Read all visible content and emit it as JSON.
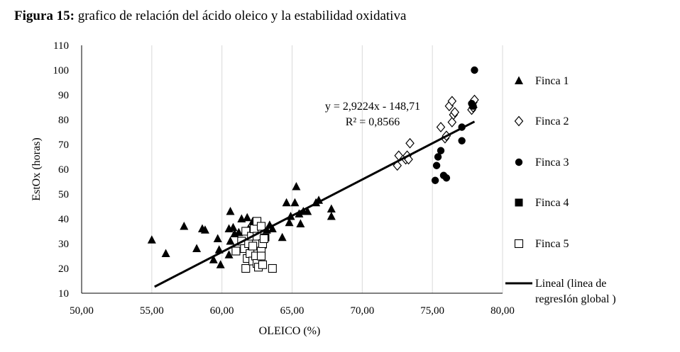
{
  "caption": {
    "label": "Figura 15:",
    "text": " grafico de relación del ácido oleico y la estabilidad oxidativa"
  },
  "chart_data": {
    "type": "scatter",
    "xlabel": "OLEICO (%)",
    "ylabel": "EstOx (horas)",
    "xlim": [
      50,
      80
    ],
    "ylim": [
      10,
      110
    ],
    "x_ticks": [
      "50,00",
      "55,00",
      "60,00",
      "65,00",
      "70,00",
      "75,00",
      "80,00"
    ],
    "y_ticks": [
      "10",
      "20",
      "30",
      "40",
      "50",
      "60",
      "70",
      "80",
      "90",
      "100",
      "110"
    ],
    "grid": "vertical",
    "legend_position": "right",
    "series": [
      {
        "name": "Finca 1",
        "marker": "triangle",
        "color": "#000000",
        "points": [
          [
            55.0,
            31.5
          ],
          [
            56.0,
            26
          ],
          [
            57.3,
            37
          ],
          [
            58.2,
            28
          ],
          [
            58.6,
            36
          ],
          [
            58.8,
            35.5
          ],
          [
            59.4,
            23.5
          ],
          [
            59.7,
            32
          ],
          [
            59.8,
            27.5
          ],
          [
            59.9,
            21.5
          ],
          [
            60.5,
            25.5
          ],
          [
            60.6,
            31
          ],
          [
            60.5,
            36
          ],
          [
            60.6,
            43
          ],
          [
            60.8,
            36.5
          ],
          [
            60.9,
            34
          ],
          [
            61.2,
            34.5
          ],
          [
            61.4,
            40
          ],
          [
            61.8,
            40.5
          ],
          [
            61.9,
            36
          ],
          [
            62.2,
            39
          ],
          [
            62.9,
            29.5
          ],
          [
            63.0,
            32
          ],
          [
            63.2,
            35.5
          ],
          [
            63.4,
            37.5
          ],
          [
            63.6,
            36
          ],
          [
            64.3,
            32.5
          ],
          [
            64.6,
            46.5
          ],
          [
            64.8,
            38.5
          ],
          [
            64.9,
            41
          ],
          [
            65.2,
            46.5
          ],
          [
            65.3,
            53
          ],
          [
            65.5,
            42
          ],
          [
            65.6,
            38
          ],
          [
            65.8,
            43
          ],
          [
            66.1,
            43
          ],
          [
            66.7,
            46.5
          ],
          [
            66.9,
            47.5
          ],
          [
            67.8,
            44
          ],
          [
            67.8,
            41
          ]
        ]
      },
      {
        "name": "Finca 2",
        "marker": "diamond",
        "color": "#000000",
        "points": [
          [
            72.5,
            61.5
          ],
          [
            72.6,
            65.5
          ],
          [
            73.1,
            64
          ],
          [
            73.2,
            65.5
          ],
          [
            73.3,
            64
          ],
          [
            73.4,
            70.5
          ],
          [
            75.6,
            77
          ],
          [
            75.9,
            72.5
          ],
          [
            76.0,
            73.5
          ],
          [
            76.2,
            85.5
          ],
          [
            76.4,
            87.5
          ],
          [
            76.4,
            79
          ],
          [
            76.5,
            82
          ],
          [
            76.6,
            83
          ],
          [
            77.8,
            84
          ],
          [
            77.9,
            85
          ],
          [
            77.9,
            87
          ],
          [
            78.0,
            88
          ]
        ]
      },
      {
        "name": "Finca 3",
        "marker": "circle",
        "color": "#000000",
        "points": [
          [
            75.2,
            55.5
          ],
          [
            75.3,
            61.5
          ],
          [
            75.4,
            65
          ],
          [
            75.6,
            67.5
          ],
          [
            75.8,
            57.5
          ],
          [
            76.0,
            56.5
          ],
          [
            77.1,
            77
          ],
          [
            77.1,
            71.5
          ],
          [
            77.8,
            86.5
          ],
          [
            77.9,
            85.5
          ],
          [
            78.0,
            100
          ]
        ]
      },
      {
        "name": "Finca 4",
        "marker": "filled-square",
        "color": "#000000",
        "points": [
          [
            63.1,
            32.5
          ]
        ]
      },
      {
        "name": "Finca 5",
        "marker": "open-square",
        "color": "#000000",
        "points": [
          [
            61.0,
            27
          ],
          [
            61.4,
            31
          ],
          [
            61.6,
            28
          ],
          [
            61.7,
            35
          ],
          [
            61.8,
            24
          ],
          [
            61.9,
            30
          ],
          [
            61.7,
            20
          ],
          [
            62.0,
            26
          ],
          [
            62.1,
            33
          ],
          [
            62.2,
            29
          ],
          [
            62.2,
            23
          ],
          [
            62.3,
            36
          ],
          [
            62.4,
            25
          ],
          [
            62.5,
            22
          ],
          [
            62.5,
            39
          ],
          [
            62.5,
            33
          ],
          [
            62.6,
            20.5
          ],
          [
            62.8,
            27
          ],
          [
            62.8,
            37
          ],
          [
            62.9,
            30
          ],
          [
            62.9,
            21.5
          ],
          [
            63.0,
            32
          ],
          [
            62.8,
            25
          ],
          [
            63.6,
            20
          ]
        ]
      }
    ],
    "trendline": {
      "name": "Lineal (linea de regresIón global )",
      "slope": 2.9224,
      "intercept": -148.71,
      "x_range": [
        55.2,
        78.0
      ]
    },
    "annotations": [
      "y = 2,9224x - 148,71",
      "R² = 0,8566"
    ]
  },
  "legend": {
    "finca1": "Finca 1",
    "finca2": "Finca 2",
    "finca3": "Finca 3",
    "finca4": "Finca 4",
    "finca5": "Finca 5",
    "lineal_1": "Lineal (linea de",
    "lineal_2": "regresIón global )"
  }
}
